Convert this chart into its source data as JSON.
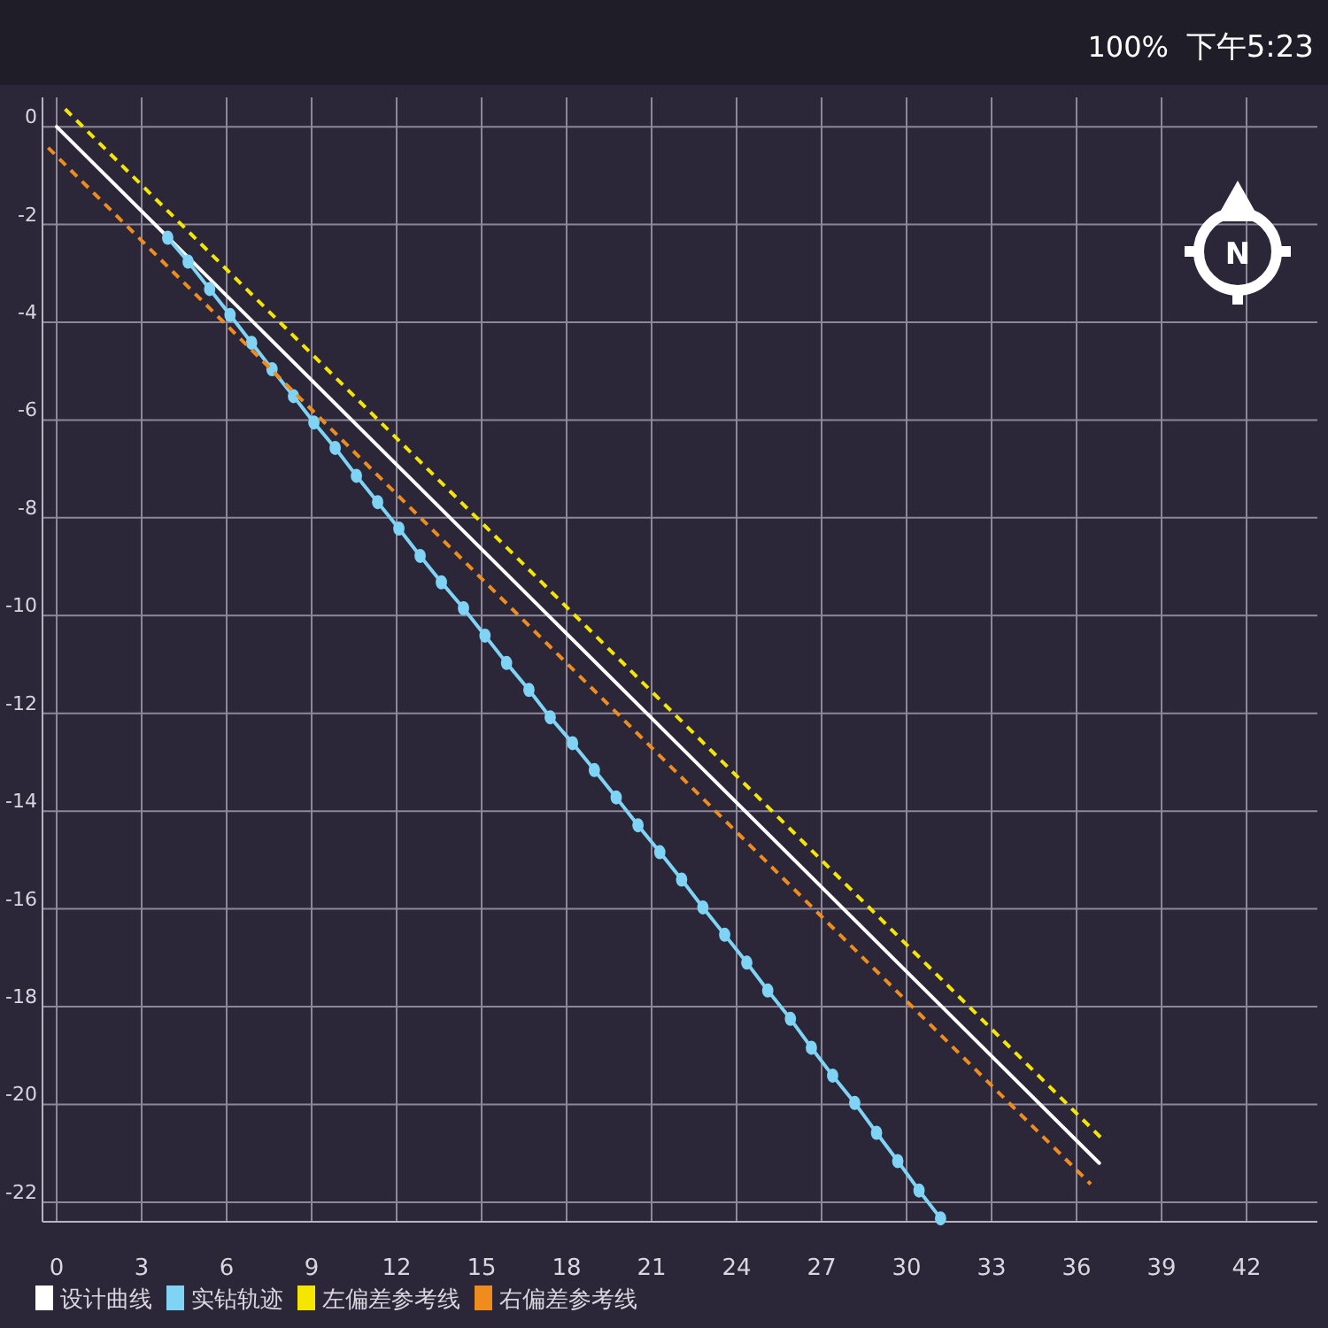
{
  "chart_data": {
    "type": "line",
    "xlim": [
      -0.5,
      44.5
    ],
    "ylim": [
      -22.4,
      0.6
    ],
    "xticks": [
      0,
      3,
      6,
      9,
      12,
      15,
      18,
      21,
      24,
      27,
      30,
      33,
      36,
      39,
      42
    ],
    "yticks": [
      -22,
      -20,
      -18,
      -16,
      -14,
      -12,
      -10,
      -8,
      -6,
      -4,
      -2,
      0
    ],
    "grid": true,
    "legend": "bottom left",
    "annotations": [
      "100%",
      "下午5:23",
      "N"
    ],
    "series": [
      {
        "name": "设计曲线",
        "color": "#ffffff",
        "x": [
          0,
          36.8
        ],
        "values": [
          0,
          -21.2
        ],
        "line_style": "solid",
        "marker": "none"
      },
      {
        "name": "实钻轨迹",
        "color": "#7fd3f5",
        "x": [
          3.92,
          4.64,
          5.4,
          6.12,
          6.88,
          7.6,
          8.36,
          9.08,
          9.83,
          10.58,
          11.33,
          12.08,
          12.83,
          13.58,
          14.36,
          15.12,
          15.88,
          16.67,
          17.42,
          18.21,
          18.98,
          19.75,
          20.52,
          21.29,
          22.06,
          22.81,
          23.58,
          24.36,
          25.1,
          25.9,
          26.64,
          27.39,
          28.17,
          28.94,
          29.69,
          30.44,
          31.2
        ],
        "values": [
          -2.27,
          -2.76,
          -3.32,
          -3.85,
          -4.42,
          -4.96,
          -5.51,
          -6.05,
          -6.57,
          -7.14,
          -7.68,
          -8.22,
          -8.78,
          -9.32,
          -9.85,
          -10.41,
          -10.97,
          -11.52,
          -12.08,
          -12.61,
          -13.16,
          -13.72,
          -14.29,
          -14.84,
          -15.4,
          -15.97,
          -16.53,
          -17.1,
          -17.67,
          -18.25,
          -18.84,
          -19.41,
          -19.97,
          -20.58,
          -21.16,
          -21.76,
          -22.33
        ],
        "line_style": "solid",
        "marker": "circle"
      },
      {
        "name": "左偏差参考线",
        "color": "#f5e600",
        "x": [
          0.3,
          37.0
        ],
        "values": [
          0.36,
          -20.76
        ],
        "line_style": "dashed",
        "marker": "none"
      },
      {
        "name": "右偏差参考线",
        "color": "#f08c1e",
        "x": [
          -0.3,
          36.5
        ],
        "values": [
          -0.43,
          -21.63
        ],
        "line_style": "dashed",
        "marker": "none"
      }
    ]
  }
}
